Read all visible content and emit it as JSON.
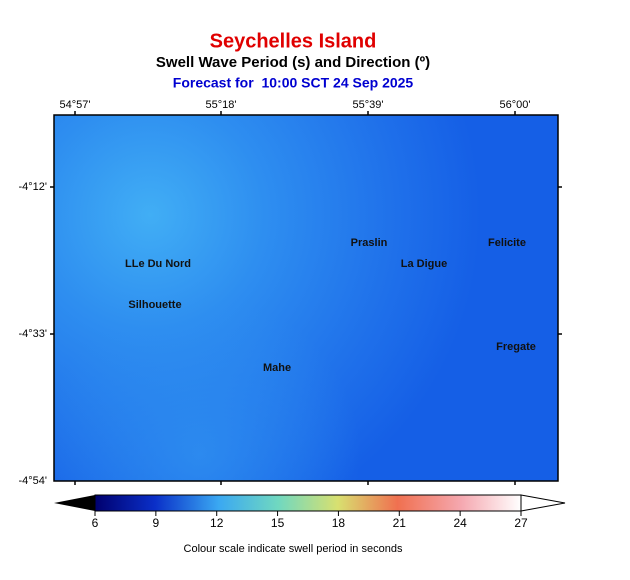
{
  "title": "Seychelles Island",
  "subtitle": "Swell Wave Period (s) and Direction (º)",
  "forecast": "Forecast for  10:00 SCT 24 Sep 2025",
  "longitude_labels": [
    "54°57'",
    "55°18'",
    "55°39'",
    "56°00'"
  ],
  "latitude_labels": [
    "-4°12'",
    "-4°33'",
    "-4°54'"
  ],
  "places": [
    "LLe Du Nord",
    "Silhouette",
    "Mahe",
    "Praslin",
    "La Digue",
    "Felicite",
    "Fregate"
  ],
  "colorbar": {
    "lim": [
      6,
      27
    ],
    "ticks": [
      6,
      9,
      12,
      15,
      18,
      21,
      24,
      27
    ],
    "caption": "Colour scale indicate swell period in seconds"
  }
}
